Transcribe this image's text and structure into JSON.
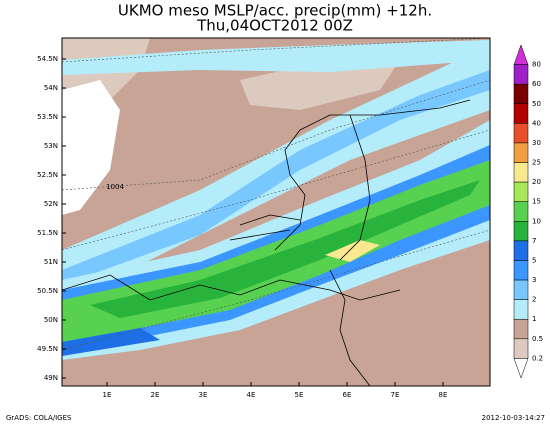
{
  "title": [
    "UKMO meso MSLP/acc. precip(mm) +12h.",
    "Thu,04OCT2012 00Z"
  ],
  "lat_labels": [
    "54.5N",
    "54N",
    "53.5N",
    "53N",
    "52.5N",
    "52N",
    "51.5N",
    "51N",
    "50.5N",
    "50N",
    "49.5N",
    "49N"
  ],
  "lon_labels": [
    "1E",
    "2E",
    "3E",
    "4E",
    "5E",
    "6E",
    "7E",
    "8E"
  ],
  "isobar_label": "1004",
  "colorbar": {
    "labels": [
      80,
      60,
      50,
      40,
      30,
      25,
      20,
      15,
      10,
      7,
      5,
      3,
      2,
      1,
      0.5,
      0.2
    ],
    "colors": [
      "#d030d8",
      "#a020c8",
      "#780000",
      "#b40000",
      "#e8502c",
      "#f0a040",
      "#f8e890",
      "#a8e858",
      "#58d050",
      "#28b43c",
      "#1e6ee6",
      "#3c96ff",
      "#78c8ff",
      "#b4ecfa",
      "#c8a496",
      "#dccabe",
      "#ffffff"
    ]
  },
  "footer": {
    "left": "GrADS: COLA/IGES",
    "right": "2012-10-03-14:27"
  }
}
